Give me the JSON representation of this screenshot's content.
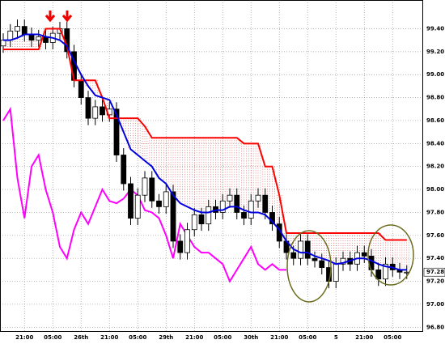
{
  "chart_data": {
    "type": "candlestick",
    "categories": [
      null,
      null,
      null,
      "21:00",
      null,
      null,
      null,
      "05:00",
      null,
      null,
      null,
      "26th",
      null,
      null,
      null,
      "21:00",
      null,
      null,
      null,
      "05:00",
      null,
      null,
      null,
      "29th",
      null,
      null,
      null,
      "21:00",
      null,
      null,
      null,
      "05:00",
      null,
      null,
      null,
      "30th",
      null,
      null,
      null,
      "21:00",
      null,
      null,
      null,
      "05:00",
      null,
      null,
      null,
      "5",
      null,
      null,
      null,
      "21:00",
      null,
      null,
      null,
      "05:00",
      null,
      null
    ],
    "open": [
      99.25,
      99.3,
      99.38,
      99.42,
      99.35,
      99.3,
      99.33,
      99.28,
      99.36,
      99.4,
      99.2,
      98.95,
      98.8,
      98.62,
      98.72,
      98.65,
      98.7,
      98.3,
      98.05,
      97.75,
      97.95,
      98.1,
      97.9,
      97.85,
      97.98,
      97.55,
      97.45,
      97.65,
      97.78,
      97.7,
      97.85,
      97.8,
      97.9,
      97.95,
      97.8,
      97.75,
      97.9,
      97.95,
      97.8,
      97.7,
      97.55,
      97.45,
      97.4,
      97.55,
      97.4,
      97.38,
      97.32,
      97.2,
      97.35,
      97.4,
      97.35,
      97.45,
      97.42,
      97.3,
      97.22,
      97.35,
      97.3,
      97.28
    ],
    "high": [
      99.36,
      99.44,
      99.48,
      99.48,
      99.41,
      99.39,
      99.39,
      99.42,
      99.46,
      99.46,
      99.26,
      99.01,
      98.86,
      98.78,
      98.78,
      98.76,
      98.76,
      98.36,
      98.11,
      98.01,
      98.16,
      98.16,
      97.96,
      98.04,
      98.04,
      97.61,
      97.71,
      97.84,
      97.84,
      97.91,
      97.91,
      97.96,
      98.01,
      98.01,
      97.86,
      97.96,
      98.01,
      98.01,
      97.86,
      97.76,
      97.61,
      97.51,
      97.61,
      97.61,
      97.46,
      97.44,
      97.38,
      97.41,
      97.46,
      97.46,
      97.51,
      97.51,
      97.48,
      97.36,
      97.41,
      97.41,
      97.36,
      97.34
    ],
    "low": [
      99.19,
      99.24,
      99.32,
      99.29,
      99.24,
      99.24,
      99.22,
      99.22,
      99.3,
      99.14,
      98.89,
      98.74,
      98.56,
      98.56,
      98.59,
      98.59,
      98.24,
      97.99,
      97.69,
      97.69,
      97.89,
      97.84,
      97.79,
      97.79,
      97.49,
      97.39,
      97.39,
      97.59,
      97.64,
      97.64,
      97.74,
      97.74,
      97.84,
      97.74,
      97.69,
      97.69,
      97.84,
      97.74,
      97.64,
      97.49,
      97.39,
      97.34,
      97.34,
      97.34,
      97.32,
      97.26,
      97.14,
      97.14,
      97.29,
      97.29,
      97.29,
      97.36,
      97.24,
      97.16,
      97.16,
      97.24,
      97.22,
      97.22
    ],
    "close": [
      99.3,
      99.38,
      99.42,
      99.35,
      99.3,
      99.33,
      99.28,
      99.36,
      99.4,
      99.2,
      98.95,
      98.8,
      98.62,
      98.72,
      98.65,
      98.7,
      98.3,
      98.05,
      97.75,
      97.95,
      98.1,
      97.9,
      97.85,
      97.98,
      97.55,
      97.45,
      97.65,
      97.78,
      97.7,
      97.85,
      97.8,
      97.9,
      97.95,
      97.8,
      97.75,
      97.9,
      97.95,
      97.8,
      97.7,
      97.55,
      97.45,
      97.4,
      97.55,
      97.4,
      97.38,
      97.32,
      97.2,
      97.35,
      97.4,
      97.35,
      97.45,
      97.42,
      97.3,
      97.22,
      97.35,
      97.3,
      97.28,
      97.28
    ],
    "lines": [
      {
        "color": "#ff0000",
        "values": [
          99.22,
          99.22,
          99.22,
          99.22,
          99.22,
          99.22,
          99.4,
          99.4,
          99.4,
          99.25,
          98.95,
          98.95,
          98.95,
          98.95,
          98.8,
          98.62,
          98.62,
          98.62,
          98.62,
          98.62,
          98.55,
          98.45,
          98.45,
          98.45,
          98.45,
          98.45,
          98.45,
          98.45,
          98.45,
          98.45,
          98.45,
          98.45,
          98.45,
          98.45,
          98.4,
          98.4,
          98.4,
          98.2,
          98.2,
          97.95,
          97.62,
          97.62,
          97.62,
          97.62,
          97.62,
          97.62,
          97.62,
          97.62,
          97.62,
          97.62,
          97.62,
          97.62,
          97.62,
          97.62,
          97.56,
          97.56,
          97.56,
          97.56
        ]
      },
      {
        "color": "#0000dd",
        "values": [
          99.3,
          99.3,
          99.32,
          99.35,
          99.35,
          99.35,
          99.33,
          99.32,
          99.3,
          99.25,
          99.12,
          99.0,
          98.9,
          98.82,
          98.8,
          98.78,
          98.65,
          98.5,
          98.35,
          98.3,
          98.25,
          98.2,
          98.1,
          98.05,
          97.95,
          97.88,
          97.85,
          97.82,
          97.8,
          97.8,
          97.82,
          97.82,
          97.85,
          97.85,
          97.82,
          97.8,
          97.8,
          97.78,
          97.72,
          97.65,
          97.55,
          97.48,
          97.45,
          97.45,
          97.42,
          97.4,
          97.38,
          97.35,
          97.36,
          97.38,
          97.4,
          97.4,
          97.38,
          97.35,
          97.33,
          97.32,
          97.3,
          97.3
        ]
      },
      {
        "color": "#ff00ff",
        "values": [
          98.6,
          98.7,
          98.1,
          97.75,
          98.2,
          98.3,
          98.0,
          97.8,
          97.5,
          97.4,
          97.65,
          97.8,
          97.7,
          97.85,
          98.0,
          97.9,
          97.88,
          97.92,
          98.0,
          97.95,
          97.82,
          97.8,
          97.75,
          97.6,
          97.4,
          97.7,
          97.6,
          97.5,
          97.45,
          97.45,
          97.4,
          97.35,
          97.2,
          97.3,
          97.4,
          97.5,
          97.35,
          97.3,
          97.35,
          97.3,
          97.3,
          null,
          null,
          null,
          null,
          null,
          null,
          null,
          null,
          null,
          null,
          null,
          null,
          null,
          null,
          null,
          null,
          null
        ]
      }
    ],
    "cloud_color": "#cc0000",
    "last_price": 97.28,
    "ylim": [
      96.76,
      99.65
    ],
    "yticks": [
      {
        "value": 96.8,
        "label": "96.80"
      },
      {
        "value": 97.0,
        "label": "97.00"
      },
      {
        "value": 97.2,
        "label": "97.20"
      },
      {
        "value": 97.4,
        "label": "97.40"
      },
      {
        "value": 97.6,
        "label": "97.60"
      },
      {
        "value": 97.8,
        "label": "97.80"
      },
      {
        "value": 98.0,
        "label": "98.00"
      },
      {
        "value": 98.2,
        "label": "98.20"
      },
      {
        "value": 98.4,
        "label": "98.40"
      },
      {
        "value": 98.6,
        "label": "98.60"
      },
      {
        "value": 98.8,
        "label": "98.80"
      },
      {
        "value": 99.0,
        "label": "99.00"
      },
      {
        "value": 99.2,
        "label": "99.20"
      },
      {
        "value": 99.4,
        "label": "99.40"
      }
    ],
    "grid": true
  }
}
